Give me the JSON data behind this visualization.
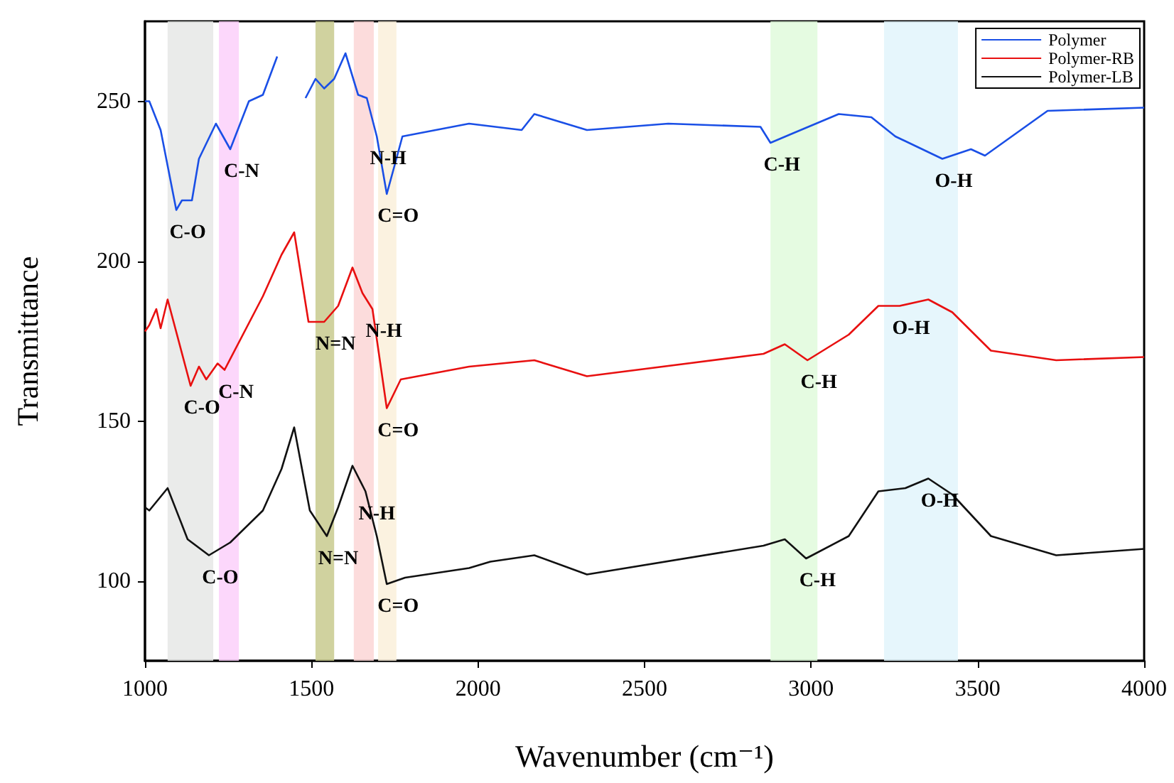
{
  "chart_data": {
    "type": "line",
    "xlabel": "Wavenumber (cm⁻¹)",
    "ylabel": "Transmittance",
    "xlim": [
      1000,
      4000
    ],
    "xticks": [
      1000,
      1500,
      2000,
      2500,
      3000,
      3500,
      4000
    ],
    "ylim": [
      75,
      275
    ],
    "yticks": [
      100,
      150,
      200,
      250
    ],
    "grid": false,
    "legend": "top right",
    "marker": "none",
    "series": [
      {
        "name": "Polymer",
        "color": "#1a4fe6",
        "x": [
          1000,
          1013,
          1047,
          1094,
          1111,
          1141,
          1162,
          1213,
          1256,
          1312,
          1354,
          1397,
          1427,
          1452,
          1482,
          1512,
          1538,
          1568,
          1602,
          1640,
          1666,
          1696,
          1726,
          1747,
          1773,
          1973,
          2131,
          2169,
          2327,
          2571,
          2848,
          2878,
          2946,
          3083,
          3181,
          3253,
          3394,
          3480,
          3522,
          3710,
          4000
        ],
        "values": [
          250,
          250,
          241,
          216,
          219,
          219,
          232,
          243,
          235,
          250,
          252,
          264,
          null,
          null,
          251,
          257,
          254,
          257,
          265,
          252,
          251,
          239,
          221,
          229,
          239,
          243,
          241,
          246,
          241,
          243,
          242,
          237,
          240,
          246,
          245,
          239,
          232,
          235,
          233,
          247,
          248
        ]
      },
      {
        "name": "Polymer-RB",
        "color": "#e81010",
        "x": [
          1000,
          1013,
          1034,
          1047,
          1068,
          1137,
          1162,
          1184,
          1218,
          1239,
          1354,
          1410,
          1448,
          1491,
          1538,
          1580,
          1623,
          1653,
          1683,
          1726,
          1768,
          1973,
          2169,
          2327,
          2857,
          2921,
          2989,
          3113,
          3202,
          3266,
          3352,
          3424,
          3540,
          3736,
          4000
        ],
        "values": [
          178,
          180,
          185,
          179,
          188,
          161,
          167,
          163,
          168,
          166,
          189,
          202,
          209,
          181,
          181,
          186,
          198,
          190,
          185,
          154,
          163,
          167,
          169,
          164,
          171,
          174,
          169,
          177,
          186,
          186,
          188,
          184,
          172,
          169,
          170
        ]
      },
      {
        "name": "Polymer-LB",
        "color": "#111111",
        "x": [
          1000,
          1013,
          1068,
          1128,
          1192,
          1256,
          1354,
          1410,
          1448,
          1495,
          1546,
          1580,
          1623,
          1662,
          1696,
          1726,
          1781,
          1973,
          2037,
          2169,
          2327,
          2857,
          2921,
          2985,
          3113,
          3202,
          3283,
          3352,
          3424,
          3540,
          3736,
          4000
        ],
        "values": [
          123,
          122,
          129,
          113,
          108,
          112,
          122,
          135,
          148,
          122,
          114,
          123,
          136,
          128,
          114,
          99,
          101,
          104,
          106,
          108,
          102,
          111,
          113,
          107,
          114,
          128,
          129,
          132,
          127,
          114,
          108,
          110
        ]
      }
    ],
    "bands": [
      {
        "axis": "x",
        "from": 1068,
        "to": 1205,
        "color": "#e6e8e6"
      },
      {
        "axis": "x",
        "from": 1222,
        "to": 1282,
        "color": "#fcd0fa"
      },
      {
        "axis": "x",
        "from": 1512,
        "to": 1568,
        "color": "#c8ca8e"
      },
      {
        "axis": "x",
        "from": 1627,
        "to": 1687,
        "color": "#fcd6d6"
      },
      {
        "axis": "x",
        "from": 1700,
        "to": 1755,
        "color": "#faf0da"
      },
      {
        "axis": "x",
        "from": 2878,
        "to": 3019,
        "color": "#e0fadc"
      },
      {
        "axis": "x",
        "from": 3219,
        "to": 3441,
        "color": "#e2f4fc"
      }
    ],
    "annotations": [
      {
        "text": "C-O",
        "x": 1094,
        "y": 216
      },
      {
        "text": "C-N",
        "x": 1256,
        "y": 235
      },
      {
        "text": "N-H",
        "x": 1696,
        "y": 239
      },
      {
        "text": "C=O",
        "x": 1726,
        "y": 221
      },
      {
        "text": "C-H",
        "x": 2878,
        "y": 237
      },
      {
        "text": "O-H",
        "x": 3394,
        "y": 232
      },
      {
        "text": "C-O",
        "x": 1137,
        "y": 161
      },
      {
        "text": "C-N",
        "x": 1239,
        "y": 166
      },
      {
        "text": "N=N",
        "x": 1538,
        "y": 181
      },
      {
        "text": "N-H",
        "x": 1683,
        "y": 185
      },
      {
        "text": "C=O",
        "x": 1726,
        "y": 154
      },
      {
        "text": "C-H",
        "x": 2989,
        "y": 169
      },
      {
        "text": "O-H",
        "x": 3266,
        "y": 186
      },
      {
        "text": "C-O",
        "x": 1192,
        "y": 108
      },
      {
        "text": "N=N",
        "x": 1546,
        "y": 114
      },
      {
        "text": "N-H",
        "x": 1662,
        "y": 128
      },
      {
        "text": "C=O",
        "x": 1726,
        "y": 99
      },
      {
        "text": "C-H",
        "x": 2985,
        "y": 107
      },
      {
        "text": "O-H",
        "x": 3352,
        "y": 132
      }
    ]
  }
}
